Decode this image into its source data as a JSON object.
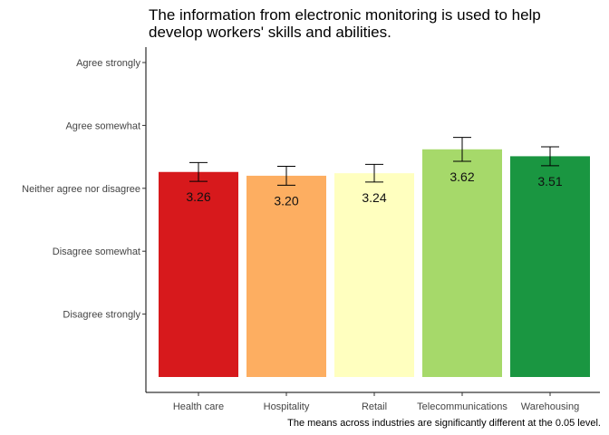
{
  "chart_data": {
    "type": "bar",
    "title": "The information from electronic monitoring is used to help develop workers' skills and abilities.",
    "title_lines": [
      "The information from electronic monitoring is used to help",
      "develop workers' skills and abilities."
    ],
    "caption": "The means across industries are significantly different at the 0.05 level.",
    "xlabel": "",
    "ylabel": "",
    "ylim": [
      0,
      5.2
    ],
    "y_ticks": [
      {
        "value": 1,
        "label": "Disagree strongly"
      },
      {
        "value": 2,
        "label": "Disagree somewhat"
      },
      {
        "value": 3,
        "label": "Neither agree nor disagree"
      },
      {
        "value": 4,
        "label": "Agree somewhat"
      },
      {
        "value": 5,
        "label": "Agree strongly"
      }
    ],
    "categories": [
      "Health care",
      "Hospitality",
      "Retail",
      "Telecommunications",
      "Warehousing"
    ],
    "values": [
      3.26,
      3.2,
      3.24,
      3.62,
      3.51
    ],
    "value_labels": [
      "3.26",
      "3.20",
      "3.24",
      "3.62",
      "3.51"
    ],
    "error_low": [
      3.11,
      3.05,
      3.1,
      3.43,
      3.36
    ],
    "error_high": [
      3.41,
      3.35,
      3.38,
      3.81,
      3.66
    ],
    "colors": [
      "#d7191c",
      "#fdae61",
      "#ffffbf",
      "#a6d96a",
      "#1a9641"
    ],
    "grid": false,
    "legend": "none"
  }
}
